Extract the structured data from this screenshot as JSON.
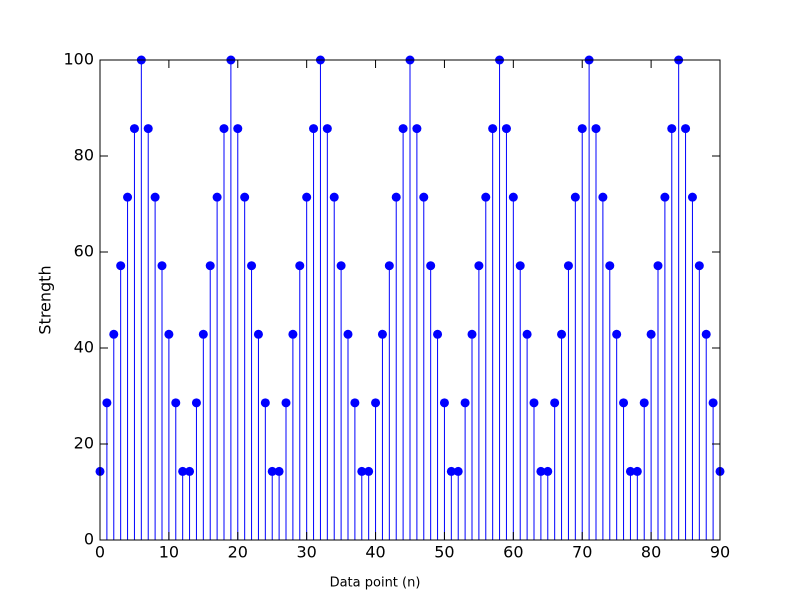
{
  "chart_data": {
    "type": "stem",
    "xlabel": "Data point (n)",
    "ylabel": "Strength",
    "color": "#0000ff",
    "x": [
      0,
      1,
      2,
      3,
      4,
      5,
      6,
      7,
      8,
      9,
      10,
      11,
      12,
      13,
      14,
      15,
      16,
      17,
      18,
      19,
      20,
      21,
      22,
      23,
      24,
      25,
      26,
      27,
      28,
      29,
      30,
      31,
      32,
      33,
      34,
      35,
      36,
      37,
      38,
      39,
      40,
      41,
      42,
      43,
      44,
      45,
      46,
      47,
      48,
      49,
      50,
      51,
      52,
      53,
      54,
      55,
      56,
      57,
      58,
      59,
      60,
      61,
      62,
      63,
      64,
      65,
      66,
      67,
      68,
      69,
      70,
      71,
      72,
      73,
      74,
      75,
      76,
      77,
      78,
      79,
      80,
      81,
      82,
      83,
      84,
      85,
      86,
      87,
      88,
      89,
      90
    ],
    "values": [
      14.29,
      28.57,
      42.86,
      57.14,
      71.43,
      85.71,
      100,
      85.71,
      71.43,
      57.14,
      42.86,
      28.57,
      14.29,
      14.29,
      28.57,
      42.86,
      57.14,
      71.43,
      85.71,
      100,
      85.71,
      71.43,
      57.14,
      42.86,
      28.57,
      14.29,
      14.29,
      28.57,
      42.86,
      57.14,
      71.43,
      85.71,
      100,
      85.71,
      71.43,
      57.14,
      42.86,
      28.57,
      14.29,
      14.29,
      28.57,
      42.86,
      57.14,
      71.43,
      85.71,
      100,
      85.71,
      71.43,
      57.14,
      42.86,
      28.57,
      14.29,
      14.29,
      28.57,
      42.86,
      57.14,
      71.43,
      85.71,
      100,
      85.71,
      71.43,
      57.14,
      42.86,
      28.57,
      14.29,
      14.29,
      28.57,
      42.86,
      57.14,
      71.43,
      85.71,
      100,
      85.71,
      71.43,
      57.14,
      42.86,
      28.57,
      14.29,
      14.29,
      28.57,
      42.86,
      57.14,
      71.43,
      85.71,
      100,
      85.71,
      71.43,
      57.14,
      42.86,
      28.57,
      14.29
    ],
    "xlim": [
      0,
      90
    ],
    "ylim": [
      0,
      100
    ],
    "xticks": [
      0,
      10,
      20,
      30,
      40,
      50,
      60,
      70,
      80,
      90
    ],
    "yticks": [
      0,
      20,
      40,
      60,
      80,
      100
    ]
  }
}
